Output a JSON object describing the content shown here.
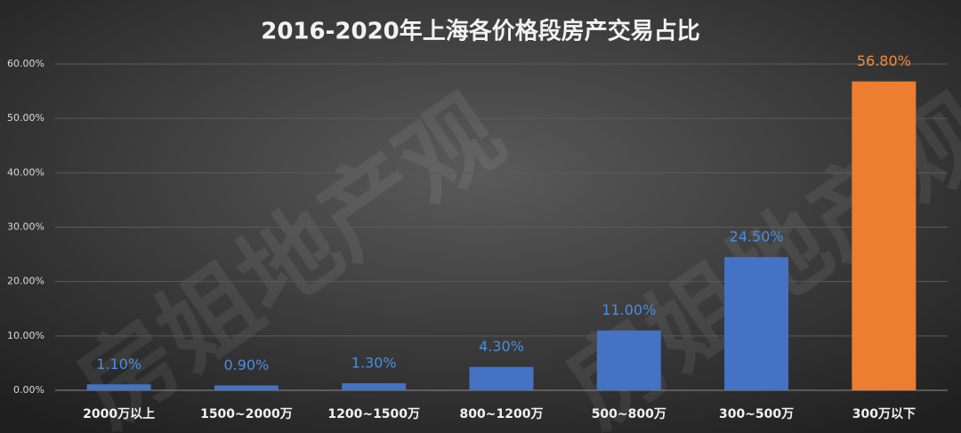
{
  "chart_data": {
    "type": "bar",
    "title": "2016-2020年上海各价格段房产交易占比",
    "watermark": "房姐地产观",
    "categories": [
      "2000万以上",
      "1500~2000万",
      "1200~1500万",
      "800~1200万",
      "500~800万",
      "300~500万",
      "300万以下"
    ],
    "values": [
      1.1,
      0.9,
      1.3,
      4.3,
      11.0,
      24.5,
      56.8
    ],
    "value_labels": [
      "1.10%",
      "0.90%",
      "1.30%",
      "4.30%",
      "11.00%",
      "24.50%",
      "56.80%"
    ],
    "colors": [
      "#4472c4",
      "#4472c4",
      "#4472c4",
      "#4472c4",
      "#4472c4",
      "#4472c4",
      "#ed7d31"
    ],
    "label_colors": [
      "#4a8ee0",
      "#4a8ee0",
      "#4a8ee0",
      "#4a8ee0",
      "#4a8ee0",
      "#4a8ee0",
      "#f28a3a"
    ],
    "ylim": [
      0,
      60
    ],
    "yticks": [
      {
        "value": 0,
        "label": "0.00%"
      },
      {
        "value": 10,
        "label": "10.00%"
      },
      {
        "value": 20,
        "label": "20.00%"
      },
      {
        "value": 30,
        "label": "30.00%"
      },
      {
        "value": 40,
        "label": "40.00%"
      },
      {
        "value": 50,
        "label": "50.00%"
      },
      {
        "value": 60,
        "label": "60.00%"
      }
    ],
    "grid": true
  }
}
